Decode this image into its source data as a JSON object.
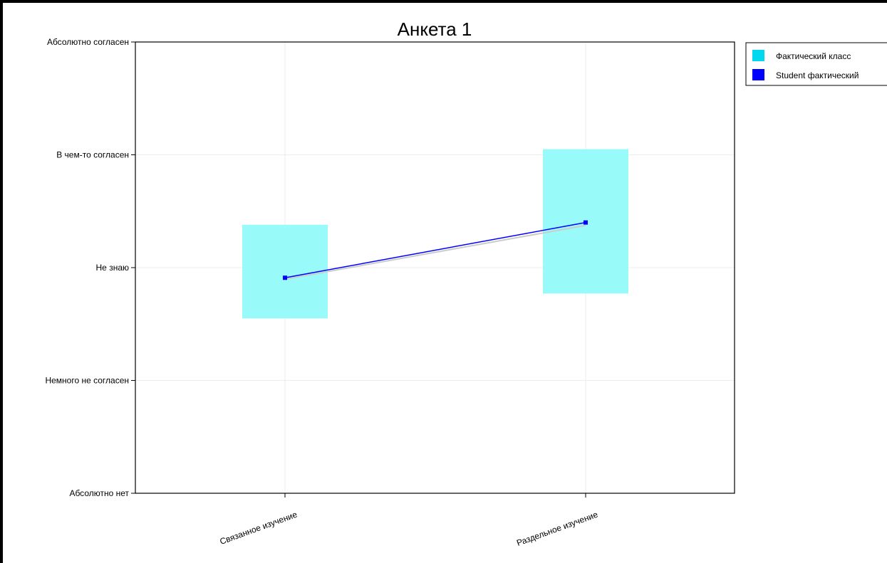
{
  "chart_data": {
    "type": "bar",
    "title": "Анкета 1",
    "categories": [
      "Связанное изучение",
      "Раздельное изучение"
    ],
    "y_levels": [
      "Абсолютно нет",
      "Немного не согласен",
      "Не знаю",
      "В чем-то согласен",
      "Абсолютно согласен"
    ],
    "ylim": [
      1,
      5
    ],
    "grid": true,
    "legend_position": "top-right, outside plot",
    "series": [
      {
        "name": "Фактический класс",
        "kind": "range-box",
        "color": "#99fafa",
        "legend_color": "#00d8f0",
        "low": [
          2.55,
          2.77
        ],
        "high": [
          3.38,
          4.05
        ],
        "mean": [
          2.91,
          3.4
        ],
        "mean_line_color": "#cccccc"
      },
      {
        "name": "Student фактический",
        "kind": "line",
        "color": "#0000ff",
        "values": [
          2.91,
          3.4
        ]
      }
    ]
  }
}
